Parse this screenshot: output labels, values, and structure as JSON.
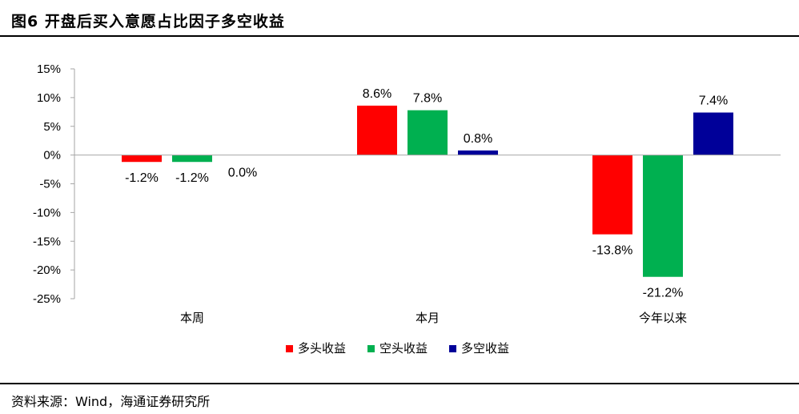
{
  "header": {
    "title": "图6   开盘后买入意愿占比因子多空收益"
  },
  "footer": {
    "source": "资料来源：Wind，海通证券研究所"
  },
  "chart_data": {
    "type": "bar",
    "categories": [
      "本周",
      "本月",
      "今年以来"
    ],
    "series": [
      {
        "name": "多头收益",
        "color": "#FF0000",
        "values": [
          -1.2,
          8.6,
          -13.8
        ],
        "labels": [
          "-1.2%",
          "8.6%",
          "-13.8%"
        ]
      },
      {
        "name": "空头收益",
        "color": "#00B050",
        "values": [
          -1.2,
          7.8,
          -21.2
        ],
        "labels": [
          "-1.2%",
          "7.8%",
          "-21.2%"
        ]
      },
      {
        "name": "多空收益",
        "color": "#000099",
        "values": [
          0.0,
          0.8,
          7.4
        ],
        "labels": [
          "0.0%",
          "0.8%",
          "7.4%"
        ]
      }
    ],
    "yticks": [
      15,
      10,
      5,
      0,
      -5,
      -10,
      -15,
      -20,
      -25
    ],
    "ytick_labels": [
      "15%",
      "10%",
      "5%",
      "0%",
      "-5%",
      "-10%",
      "-15%",
      "-20%",
      "-25%"
    ],
    "ylim": [
      -25,
      15
    ],
    "unit": "%",
    "legend": "bottom-center",
    "grid": false
  }
}
